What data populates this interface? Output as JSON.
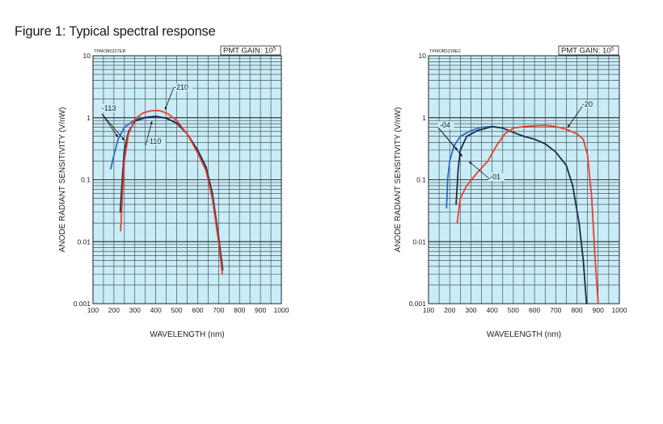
{
  "figure_title": "Figure 1: Typical spectral response",
  "chart_data": [
    {
      "type": "line",
      "code": "TPMOB0227EB",
      "gain_label": "PMT GAIN: 10",
      "gain_exp": "5",
      "xlabel": "WAVELENGTH (nm)",
      "ylabel": "ANODE RADIANT SENSITIVITY (V/nW)",
      "xlim": [
        100,
        1000
      ],
      "ylim": [
        0.001,
        10
      ],
      "yscale": "log",
      "grid": true,
      "xticks": [
        "100",
        "200",
        "300",
        "400",
        "500",
        "600",
        "700",
        "800",
        "900",
        "1000"
      ],
      "yticks": [
        {
          "value": 10,
          "label": "10"
        },
        {
          "value": 1,
          "label": "1"
        },
        {
          "value": 0.1,
          "label": "0.1"
        },
        {
          "value": 0.01,
          "label": "0.01"
        },
        {
          "value": 0.001,
          "label": "0.001"
        }
      ],
      "series": [
        {
          "name": "-113",
          "color": "#2a6cc4",
          "points": [
            [
              185,
              0.15
            ],
            [
              200,
              0.25
            ],
            [
              220,
              0.45
            ],
            [
              250,
              0.7
            ],
            [
              300,
              0.92
            ],
            [
              350,
              1.02
            ],
            [
              400,
              1.05
            ],
            [
              450,
              0.98
            ],
            [
              500,
              0.82
            ],
            [
              550,
              0.55
            ],
            [
              600,
              0.3
            ],
            [
              640,
              0.16
            ],
            [
              670,
              0.06
            ],
            [
              700,
              0.012
            ],
            [
              715,
              0.004
            ]
          ]
        },
        {
          "name": "-110",
          "color": "#1c2b4a",
          "points": [
            [
              230,
              0.03
            ],
            [
              240,
              0.1
            ],
            [
              250,
              0.3
            ],
            [
              270,
              0.6
            ],
            [
              300,
              0.88
            ],
            [
              350,
              1.0
            ],
            [
              400,
              1.05
            ],
            [
              450,
              0.98
            ],
            [
              500,
              0.82
            ],
            [
              550,
              0.55
            ],
            [
              600,
              0.3
            ],
            [
              640,
              0.16
            ],
            [
              670,
              0.06
            ],
            [
              700,
              0.012
            ],
            [
              720,
              0.0035
            ]
          ]
        },
        {
          "name": "-210",
          "color": "#e8402a",
          "points": [
            [
              232,
              0.015
            ],
            [
              240,
              0.05
            ],
            [
              250,
              0.2
            ],
            [
              270,
              0.55
            ],
            [
              300,
              0.95
            ],
            [
              340,
              1.2
            ],
            [
              380,
              1.3
            ],
            [
              420,
              1.3
            ],
            [
              460,
              1.15
            ],
            [
              500,
              0.9
            ],
            [
              550,
              0.55
            ],
            [
              600,
              0.27
            ],
            [
              640,
              0.14
            ],
            [
              670,
              0.05
            ],
            [
              700,
              0.01
            ],
            [
              718,
              0.003
            ]
          ]
        }
      ],
      "labels": [
        "-113",
        "-110",
        "-210"
      ]
    },
    {
      "type": "line",
      "code": "TPMOB0228EC",
      "gain_label": "PMT GAIN: 10",
      "gain_exp": "5",
      "xlabel": "WAVELENGTH (nm)",
      "ylabel": "ANODE RADIANT SENSITIVITY (V/nW)",
      "xlim": [
        100,
        1000
      ],
      "ylim": [
        0.001,
        10
      ],
      "yscale": "log",
      "grid": true,
      "xticks": [
        "100",
        "200",
        "300",
        "400",
        "500",
        "600",
        "700",
        "800",
        "900",
        "1000"
      ],
      "yticks": [
        {
          "value": 10,
          "label": "10"
        },
        {
          "value": 1,
          "label": "1"
        },
        {
          "value": 0.1,
          "label": "0.1"
        },
        {
          "value": 0.01,
          "label": "0.01"
        },
        {
          "value": 0.001,
          "label": "0.001"
        }
      ],
      "series": [
        {
          "name": "-04",
          "color": "#2a6cc4",
          "points": [
            [
              185,
              0.035
            ],
            [
              190,
              0.1
            ],
            [
              200,
              0.2
            ],
            [
              220,
              0.35
            ],
            [
              250,
              0.5
            ],
            [
              300,
              0.62
            ],
            [
              350,
              0.7
            ],
            [
              400,
              0.72
            ]
          ]
        },
        {
          "name": "-01",
          "color": "#1c2b4a",
          "points": [
            [
              230,
              0.04
            ],
            [
              240,
              0.15
            ],
            [
              250,
              0.3
            ],
            [
              280,
              0.5
            ],
            [
              330,
              0.62
            ],
            [
              400,
              0.72
            ],
            [
              450,
              0.68
            ],
            [
              500,
              0.58
            ],
            [
              550,
              0.5
            ],
            [
              600,
              0.45
            ],
            [
              650,
              0.38
            ],
            [
              700,
              0.28
            ],
            [
              750,
              0.17
            ],
            [
              780,
              0.08
            ],
            [
              810,
              0.02
            ],
            [
              830,
              0.005
            ],
            [
              845,
              0.001
            ]
          ]
        },
        {
          "name": "-20",
          "color": "#e8402a",
          "points": [
            [
              235,
              0.02
            ],
            [
              250,
              0.05
            ],
            [
              280,
              0.08
            ],
            [
              330,
              0.13
            ],
            [
              380,
              0.2
            ],
            [
              420,
              0.35
            ],
            [
              460,
              0.55
            ],
            [
              500,
              0.68
            ],
            [
              550,
              0.72
            ],
            [
              600,
              0.74
            ],
            [
              650,
              0.75
            ],
            [
              700,
              0.72
            ],
            [
              750,
              0.65
            ],
            [
              800,
              0.55
            ],
            [
              830,
              0.45
            ],
            [
              850,
              0.25
            ],
            [
              870,
              0.05
            ],
            [
              885,
              0.006
            ],
            [
              900,
              0.001
            ]
          ]
        }
      ],
      "labels": [
        "-04",
        "-01",
        "-20"
      ]
    }
  ]
}
